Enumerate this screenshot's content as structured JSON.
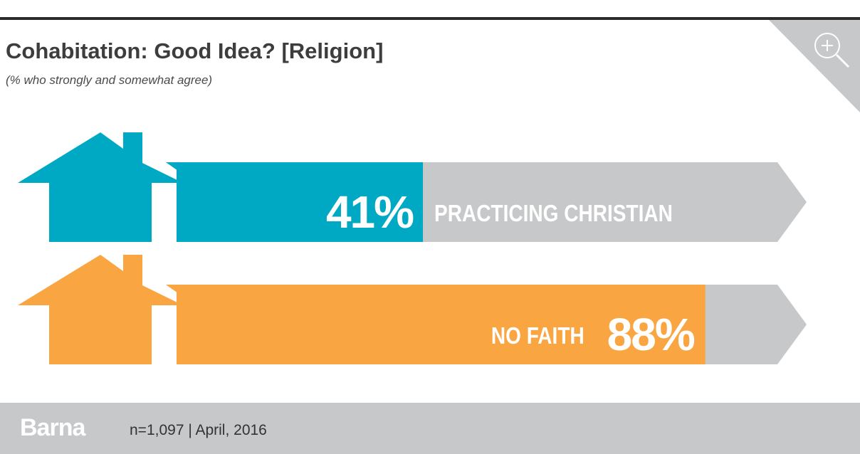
{
  "title": "Cohabitation: Good Idea? [Religion]",
  "subtitle": "(% who strongly and somewhat agree)",
  "zoom_icon": "zoom-in-icon",
  "footer": {
    "logo": "Barna",
    "note": "n=1,097  |  April, 2016"
  },
  "colors": {
    "teal": "#00a9c3",
    "orange": "#f9a541",
    "track": "#c7c8ca",
    "text": "#ffffff"
  },
  "chart_data": {
    "type": "bar",
    "orientation": "horizontal",
    "categories": [
      "PRACTICING CHRISTIAN",
      "NO FAITH"
    ],
    "values": [
      41,
      88
    ],
    "value_labels": [
      "41%",
      "88%"
    ],
    "xlim": [
      0,
      100
    ],
    "colors": [
      "#00a9c3",
      "#f9a541"
    ]
  }
}
